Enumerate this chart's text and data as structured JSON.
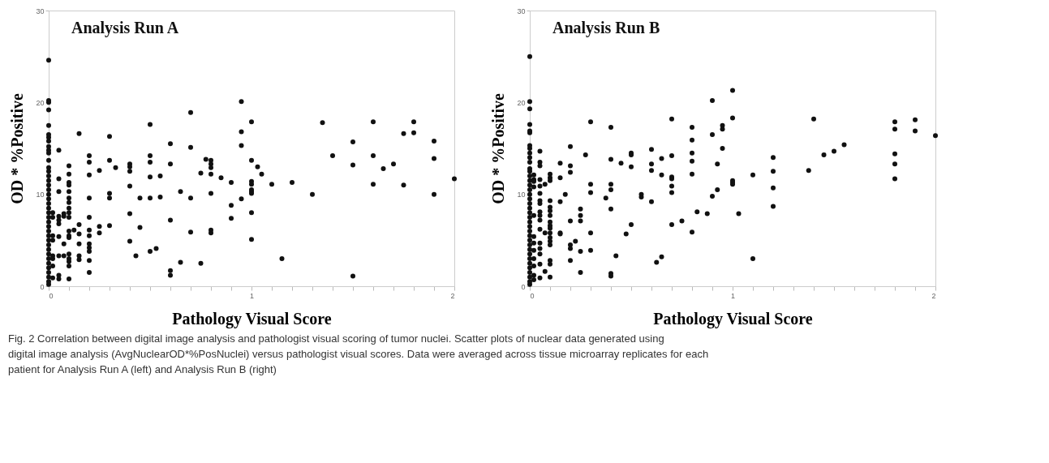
{
  "chart_data": [
    {
      "type": "scatter",
      "title": "Analysis Run A",
      "xlabel": "Pathology Visual Score",
      "ylabel": "OD * %Positive",
      "marker": "circle",
      "grid": false,
      "xlim": [
        0,
        2
      ],
      "ylim": [
        0,
        30
      ],
      "xticks": [
        0,
        {
          "value": 0.1,
          "label": null
        },
        {
          "value": 0.2,
          "label": null
        },
        {
          "value": 0.3,
          "label": null
        },
        {
          "value": 0.4,
          "label": null
        },
        {
          "value": 0.5,
          "label": null
        },
        {
          "value": 0.6,
          "label": null
        },
        {
          "value": 0.7,
          "label": null
        },
        {
          "value": 0.8,
          "label": null
        },
        {
          "value": 0.9,
          "label": null
        },
        1,
        {
          "value": 1.1,
          "label": null
        },
        {
          "value": 1.2,
          "label": null
        },
        {
          "value": 1.3,
          "label": null
        },
        {
          "value": 1.4,
          "label": null
        },
        {
          "value": 1.5,
          "label": null
        },
        {
          "value": 1.6,
          "label": null
        },
        {
          "value": 1.7,
          "label": null
        },
        {
          "value": 1.8,
          "label": null
        },
        {
          "value": 1.9,
          "label": null
        },
        2
      ],
      "yticks": [
        0,
        10,
        20,
        30
      ],
      "annotations": [
        "Fig. 2 Correlation between digital image analysis and pathologist visual scoring of tumor nuclei. Scatter plots of nuclear data generated using digital image analysis (AvgNuclearOD*%PosNuclei) versus pathologist visual scores. Data were averaged across tissue microarray replicates for each patient for Analysis Run A (left) and Analysis Run B (right)"
      ],
      "series": [
        {
          "color": "#111111",
          "x": [
            0,
            0,
            0,
            0,
            0,
            0,
            0,
            0,
            0,
            0,
            0,
            0,
            0,
            0,
            0,
            0,
            0,
            0,
            0,
            0,
            0,
            0,
            0,
            0,
            0,
            0,
            0,
            0,
            0,
            0,
            0,
            0,
            0,
            0,
            0,
            0,
            0,
            0,
            0,
            0.02,
            0.02,
            0.02,
            0.02,
            0.02,
            0.02,
            0.02,
            0.02,
            0.05,
            0.05,
            0.05,
            0.05,
            0.05,
            0.05,
            0.05,
            0.05,
            0.05,
            0.05,
            0.075,
            0.075,
            0.075,
            0.075,
            0.1,
            0.1,
            0.1,
            0.1,
            0.1,
            0.1,
            0.1,
            0.1,
            0.1,
            0.1,
            0.1,
            0.1,
            0.1,
            0.1,
            0.1,
            0.1,
            0.1,
            0.1,
            0.125,
            0.15,
            0.15,
            0.15,
            0.15,
            0.15,
            0.15,
            0.2,
            0.2,
            0.2,
            0.2,
            0.2,
            0.2,
            0.2,
            0.2,
            0.2,
            0.2,
            0.2,
            0.2,
            0.25,
            0.25,
            0.25,
            0.3,
            0.3,
            0.3,
            0.3,
            0.3,
            0.33,
            0.4,
            0.4,
            0.4,
            0.4,
            0.4,
            0.4,
            0.43,
            0.45,
            0.45,
            0.5,
            0.5,
            0.5,
            0.5,
            0.5,
            0.5,
            0.53,
            0.55,
            0.55,
            0.6,
            0.6,
            0.6,
            0.6,
            0.6,
            0.65,
            0.65,
            0.7,
            0.7,
            0.7,
            0.7,
            0.75,
            0.75,
            0.775,
            0.8,
            0.8,
            0.8,
            0.8,
            0.8,
            0.8,
            0.8,
            0.85,
            0.9,
            0.9,
            0.9,
            0.95,
            0.95,
            0.95,
            0.95,
            1,
            1,
            1,
            1,
            1,
            1,
            1,
            1,
            1,
            1.03,
            1.05,
            1.1,
            1.2,
            1.15,
            1.3,
            1.35,
            1.4,
            1.5,
            1.5,
            1.5,
            1.6,
            1.6,
            1.6,
            1.65,
            1.7,
            1.75,
            1.75,
            1.8,
            1.8,
            1.9,
            1.9,
            1.9,
            2
          ],
          "values": [
            0.2,
            0.5,
            1,
            1.5,
            2,
            2.5,
            3,
            3.5,
            4,
            4.5,
            5,
            5.5,
            6,
            6.5,
            7,
            7.5,
            8,
            8.5,
            9,
            9.5,
            10,
            10.5,
            11,
            11.5,
            12,
            12.5,
            12.9,
            13.7,
            14.5,
            14.8,
            15.2,
            15.8,
            16.2,
            16.5,
            17.5,
            19.2,
            20,
            20.2,
            24.6,
            8,
            7.5,
            5.5,
            5,
            3.3,
            3,
            2.2,
            0.9,
            14.8,
            11.7,
            10.3,
            7.6,
            7.2,
            6.8,
            5.4,
            3.3,
            1.2,
            0.8,
            7.6,
            7.9,
            4.6,
            3.3,
            13.1,
            12.2,
            11.3,
            11,
            10.3,
            9.6,
            9.1,
            8.5,
            8,
            7.5,
            6,
            5.5,
            5.3,
            3.5,
            3,
            2.7,
            2.2,
            0.8,
            6.1,
            16.6,
            6.7,
            5.7,
            4.6,
            3.3,
            2.9,
            14.2,
            13.5,
            12.1,
            9.6,
            7.5,
            6.1,
            5.5,
            4.6,
            4.2,
            3.8,
            2.8,
            1.5,
            12.6,
            6.5,
            5.8,
            16.3,
            13.7,
            10.1,
            9.6,
            6.6,
            12.9,
            13.3,
            13,
            12.5,
            10.9,
            7.9,
            4.9,
            3.3,
            9.6,
            6.4,
            17.6,
            14.2,
            13.5,
            11.9,
            9.6,
            3.8,
            4.1,
            12,
            9.7,
            15.5,
            13.3,
            7.2,
            1.7,
            1.2,
            10.3,
            2.6,
            18.9,
            15.1,
            9.6,
            5.9,
            12.3,
            2.5,
            13.8,
            13.7,
            13.3,
            12.9,
            12.2,
            10.1,
            6.1,
            5.8,
            11.8,
            11.3,
            8.8,
            7.4,
            20.1,
            16.8,
            15.3,
            9.5,
            17.9,
            13.7,
            11.4,
            11.1,
            10.5,
            10.3,
            10.1,
            8,
            5.1,
            13,
            12.2,
            11.1,
            11.3,
            3,
            10,
            17.8,
            14.2,
            15.7,
            13.2,
            1.1,
            17.9,
            14.2,
            11.1,
            12.8,
            13.3,
            16.6,
            11,
            17.9,
            16.7,
            15.8,
            13.9,
            10,
            11.7
          ]
        }
      ]
    },
    {
      "type": "scatter",
      "title": "Analysis Run B",
      "xlabel": "Pathology Visual Score",
      "ylabel": "OD * %Positive",
      "marker": "circle",
      "grid": false,
      "xlim": [
        0,
        2
      ],
      "ylim": [
        0,
        30
      ],
      "xticks": [
        0,
        {
          "value": 0.1,
          "label": null
        },
        {
          "value": 0.2,
          "label": null
        },
        {
          "value": 0.3,
          "label": null
        },
        {
          "value": 0.4,
          "label": null
        },
        {
          "value": 0.5,
          "label": null
        },
        {
          "value": 0.6,
          "label": null
        },
        {
          "value": 0.7,
          "label": null
        },
        {
          "value": 0.8,
          "label": null
        },
        {
          "value": 0.9,
          "label": null
        },
        1,
        {
          "value": 1.1,
          "label": null
        },
        {
          "value": 1.2,
          "label": null
        },
        {
          "value": 1.3,
          "label": null
        },
        {
          "value": 1.4,
          "label": null
        },
        {
          "value": 1.5,
          "label": null
        },
        {
          "value": 1.6,
          "label": null
        },
        {
          "value": 1.7,
          "label": null
        },
        {
          "value": 1.8,
          "label": null
        },
        {
          "value": 1.9,
          "label": null
        },
        2
      ],
      "yticks": [
        0,
        10,
        20,
        30
      ],
      "series": [
        {
          "color": "#111111",
          "x": [
            0,
            0,
            0,
            0,
            0,
            0,
            0,
            0,
            0,
            0,
            0,
            0,
            0,
            0,
            0,
            0,
            0,
            0,
            0,
            0,
            0,
            0,
            0,
            0,
            0,
            0,
            0,
            0,
            0,
            0,
            0,
            0,
            0,
            0,
            0,
            0,
            0,
            0,
            0.02,
            0.02,
            0.02,
            0.02,
            0.02,
            0.02,
            0.02,
            0.02,
            0.02,
            0.02,
            0.02,
            0.02,
            0.05,
            0.05,
            0.05,
            0.05,
            0.05,
            0.05,
            0.05,
            0.05,
            0.05,
            0.05,
            0.05,
            0.05,
            0.05,
            0.05,
            0.05,
            0.05,
            0.05,
            0.075,
            0.075,
            0.075,
            0.1,
            0.1,
            0.1,
            0.1,
            0.1,
            0.1,
            0.1,
            0.1,
            0.1,
            0.1,
            0.1,
            0.1,
            0.1,
            0.1,
            0.1,
            0.1,
            0.1,
            0.15,
            0.15,
            0.15,
            0.15,
            0.15,
            0.175,
            0.2,
            0.2,
            0.2,
            0.2,
            0.2,
            0.2,
            0.2,
            0.225,
            0.25,
            0.25,
            0.25,
            0.25,
            0.25,
            0.275,
            0.3,
            0.3,
            0.3,
            0.3,
            0.3,
            0.375,
            0.4,
            0.4,
            0.4,
            0.4,
            0.4,
            0.4,
            0.4,
            0.425,
            0.45,
            0.475,
            0.5,
            0.5,
            0.5,
            0.5,
            0.55,
            0.55,
            0.6,
            0.6,
            0.6,
            0.6,
            0.625,
            0.65,
            0.65,
            0.65,
            0.7,
            0.7,
            0.7,
            0.7,
            0.7,
            0.7,
            0.7,
            0.75,
            0.8,
            0.8,
            0.8,
            0.8,
            0.8,
            0.8,
            0.825,
            0.875,
            0.9,
            0.9,
            0.9,
            0.925,
            0.925,
            0.95,
            0.95,
            0.95,
            1,
            1,
            1,
            1,
            1,
            1.03,
            1.1,
            1.1,
            1.2,
            1.2,
            1.2,
            1.2,
            1.375,
            1.4,
            1.45,
            1.5,
            1.55,
            1.8,
            1.8,
            1.8,
            1.8,
            1.8,
            1.9,
            1.9,
            2
          ],
          "values": [
            0.2,
            0.5,
            1,
            1.5,
            2,
            2.5,
            3,
            3.5,
            4,
            4.5,
            5,
            5.5,
            6,
            6.5,
            7,
            7.5,
            8,
            8.5,
            9,
            9.5,
            10,
            10.5,
            11,
            11.5,
            12,
            12.5,
            12.8,
            13.5,
            14,
            14.5,
            15,
            15.3,
            16.7,
            16.9,
            17.6,
            19.3,
            20.1,
            25,
            12.1,
            11.6,
            10.8,
            11.4,
            7.7,
            5.4,
            4.7,
            3.9,
            3,
            2.2,
            1.2,
            0.7,
            14.7,
            13.5,
            13.1,
            11.6,
            10.9,
            10.1,
            9.3,
            9,
            8.1,
            7.7,
            7.2,
            6.2,
            4.7,
            4.1,
            3.5,
            2.4,
            0.9,
            11.1,
            5.8,
            1.6,
            12.2,
            11.8,
            11.5,
            9.3,
            8.6,
            8.2,
            7.7,
            7,
            6.6,
            6.3,
            5.8,
            5.3,
            4.9,
            4.5,
            2.8,
            2.4,
            1,
            13.4,
            11.8,
            9.2,
            5.8,
            5.7,
            10,
            15.2,
            13.1,
            12.4,
            7.1,
            4.5,
            4.1,
            2.8,
            4.9,
            8.4,
            7.7,
            7.1,
            3.8,
            1.5,
            14.3,
            17.9,
            11.1,
            10.2,
            5.8,
            3.9,
            9.6,
            17.3,
            13.8,
            11.1,
            10.5,
            8.4,
            1.4,
            1.1,
            3.3,
            13.4,
            5.7,
            14.5,
            14.3,
            13,
            6.7,
            10,
            9.7,
            14.9,
            13.3,
            12.6,
            9.2,
            2.6,
            13.9,
            12.1,
            3.2,
            18.2,
            14.2,
            11.9,
            11.7,
            10.9,
            10.2,
            6.7,
            7.1,
            17.3,
            15.9,
            14.5,
            13.6,
            12.2,
            5.9,
            8.1,
            7.9,
            20.2,
            16.5,
            9.8,
            13.3,
            10.5,
            17.5,
            17.1,
            15,
            21.3,
            18.3,
            11.5,
            11.3,
            11.1,
            7.9,
            12.1,
            3,
            14,
            12.5,
            10.7,
            8.7,
            12.6,
            18.2,
            14.3,
            14.7,
            15.4,
            17.9,
            17.1,
            14.4,
            13.3,
            11.7,
            18.1,
            16.9,
            16.4
          ]
        }
      ]
    }
  ]
}
